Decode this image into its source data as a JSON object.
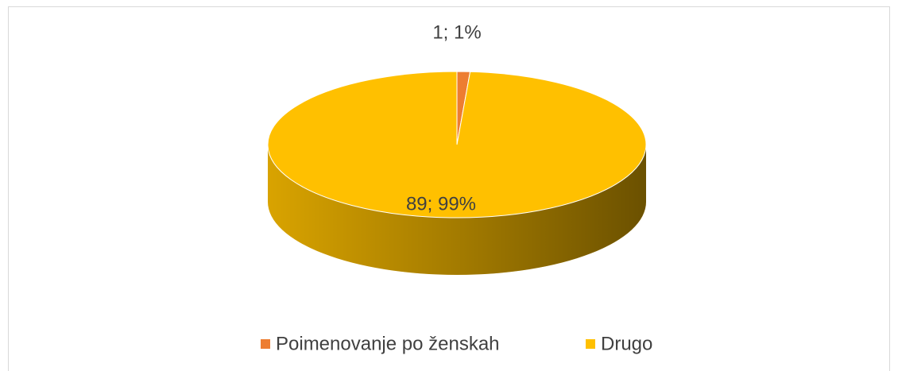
{
  "chart_data": {
    "type": "pie",
    "categories": [
      "Poimenovanje po ženskah",
      "Drugo"
    ],
    "values": [
      1,
      89
    ],
    "value_labels": [
      "1; 1%",
      "89; 99%"
    ],
    "colors": [
      "#ed7d31",
      "#ffc000"
    ],
    "legend": "bottom",
    "three_d": true
  }
}
